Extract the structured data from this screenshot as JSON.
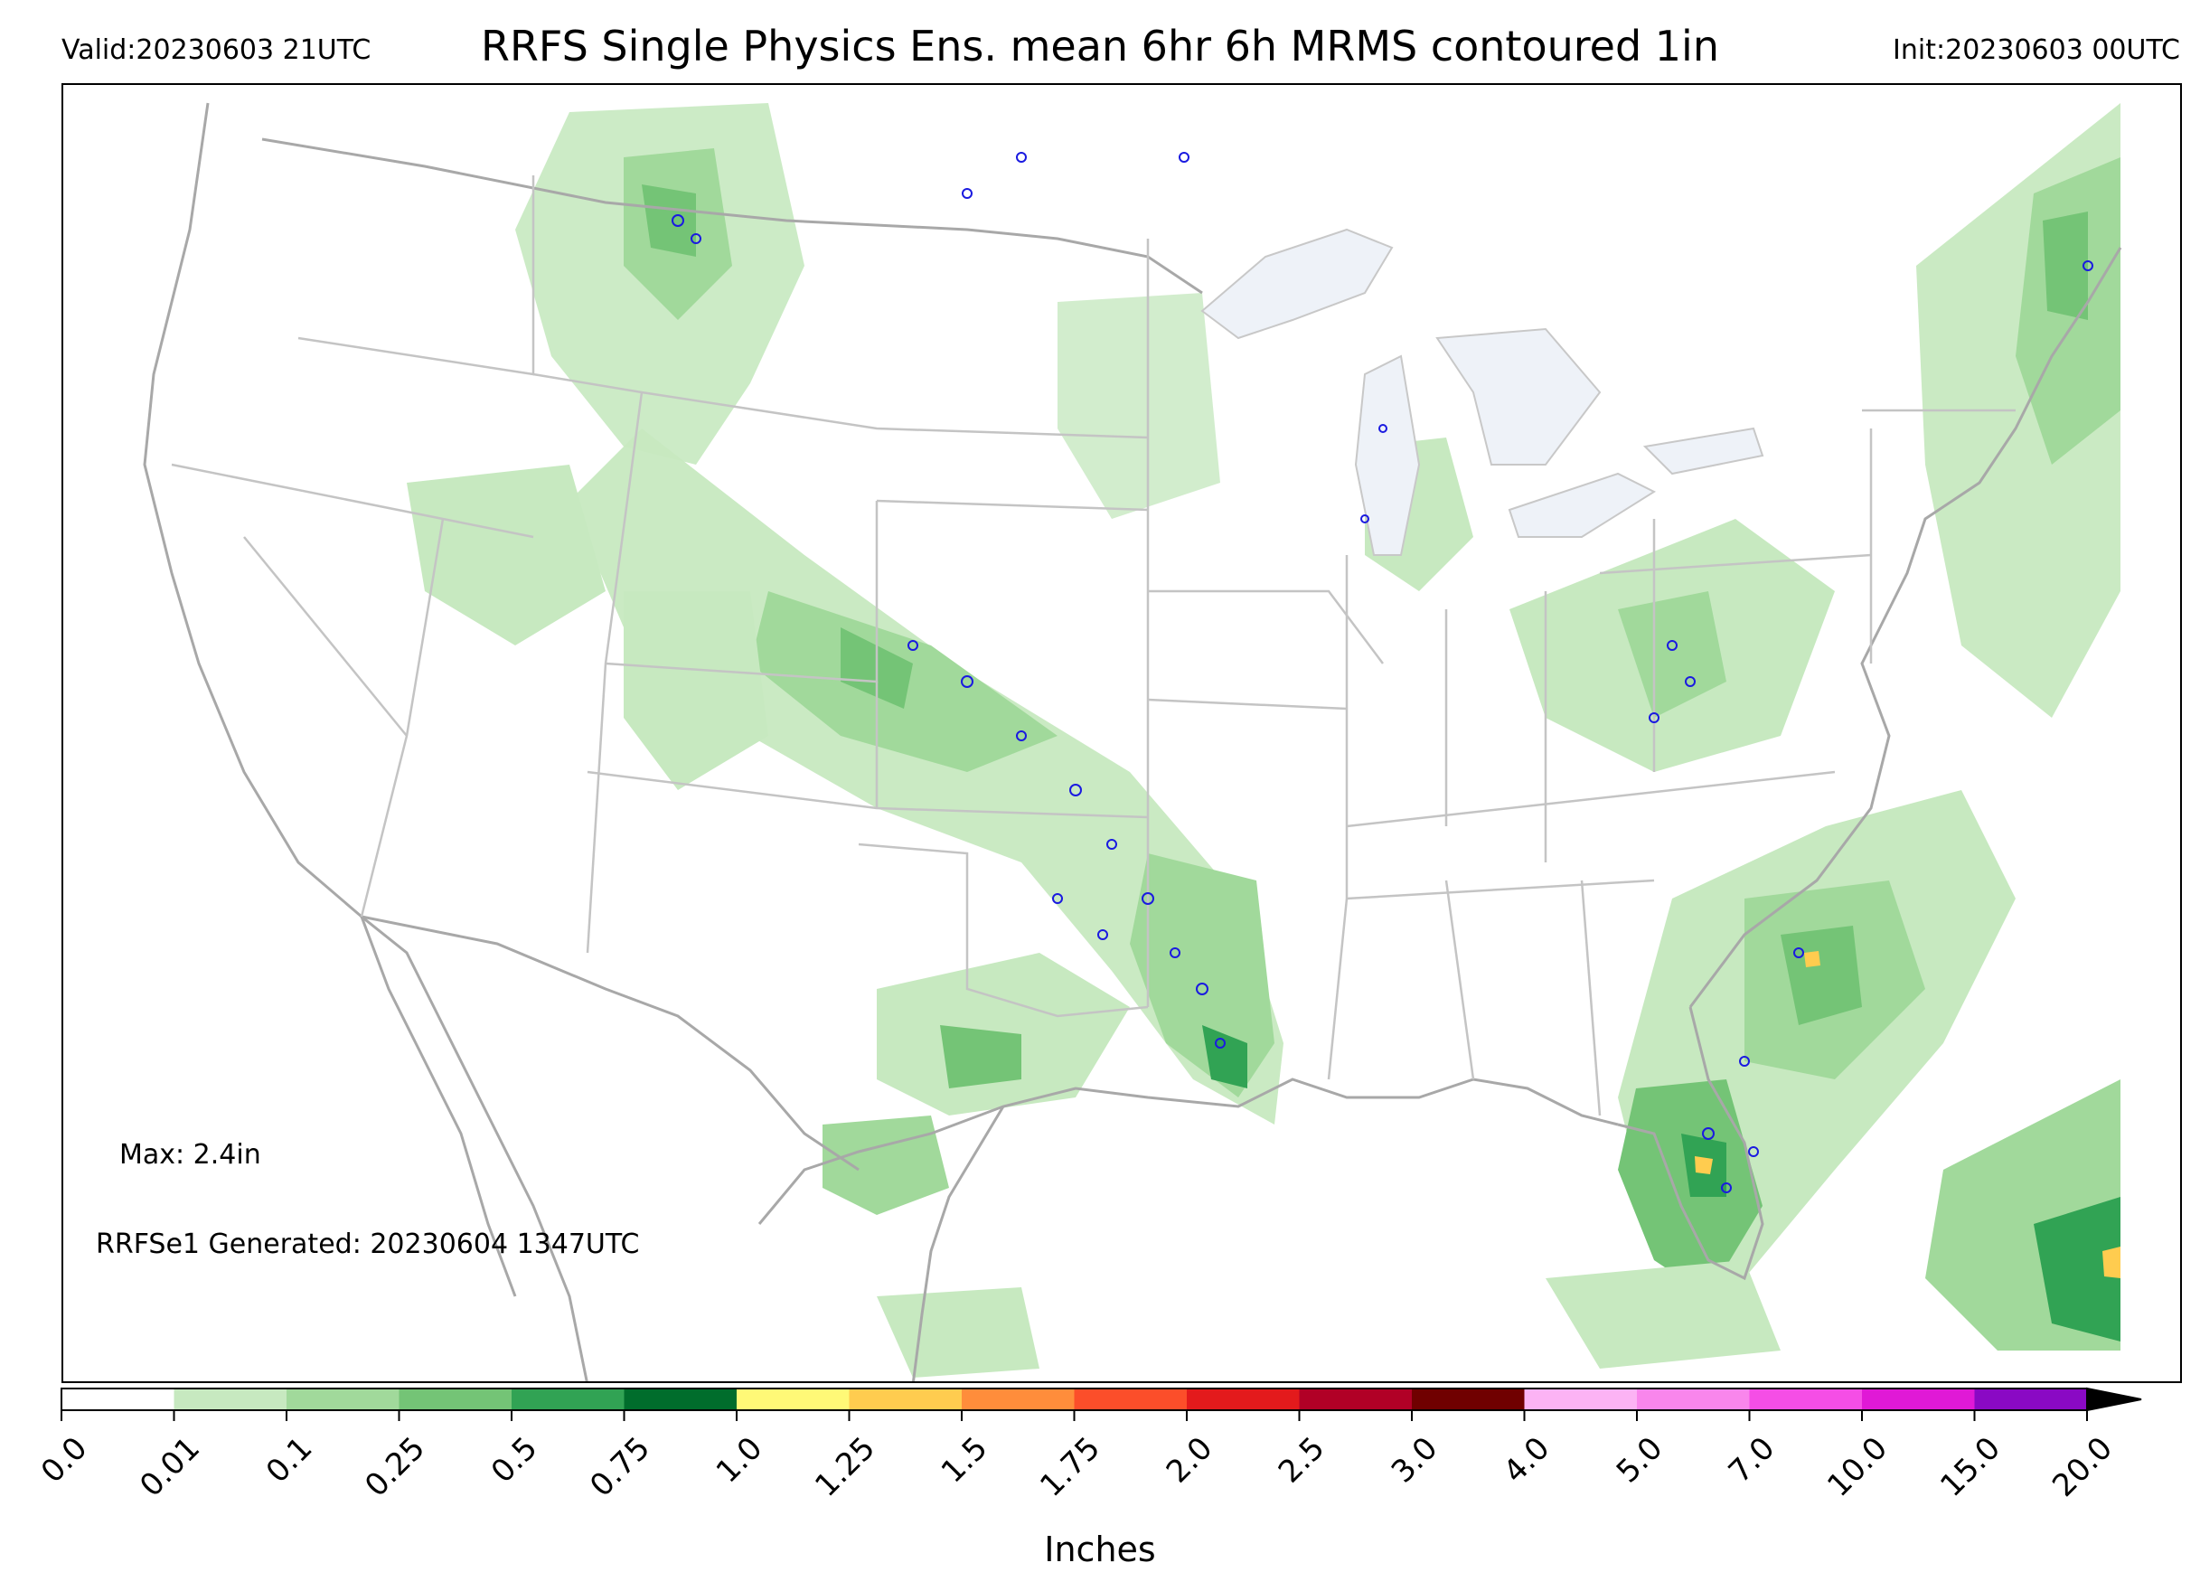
{
  "header": {
    "valid": "Valid:20230603 21UTC",
    "title": "RRFS Single Physics Ens. mean 6hr 6h MRMS contoured 1in",
    "init": "Init:20230603 00UTC"
  },
  "annotations": {
    "max": "Max: 2.4in",
    "generated": "RRFSe1 Generated: 20230604 1347UTC"
  },
  "colorbar": {
    "label": "Inches",
    "extend": "max",
    "ticks": [
      "0.0",
      "0.01",
      "0.1",
      "0.25",
      "0.5",
      "0.75",
      "1.0",
      "1.25",
      "1.5",
      "1.75",
      "2.0",
      "2.5",
      "3.0",
      "4.0",
      "5.0",
      "7.0",
      "10.0",
      "15.0",
      "20.0"
    ],
    "colors": [
      "#ffffff",
      "#c7e9c0",
      "#a1d99b",
      "#74c476",
      "#31a354",
      "#006d2c",
      "#fff977",
      "#ffcc4f",
      "#ff8d3b",
      "#fc4e2a",
      "#e31a1c",
      "#b10026",
      "#700000",
      "#fcb3f4",
      "#f986ec",
      "#f54ee6",
      "#e019d6",
      "#8a09c4"
    ]
  },
  "map": {
    "colors": {
      "border": "#c4c4c4",
      "coast": "#a8a8a8",
      "lake": "#eef2f8",
      "precip_light": "#c7e9c0",
      "precip_mid": "#a1d99b",
      "precip_heavy": "#74c476",
      "precip_core": "#31a354",
      "mrms_contour": "#1a1ae0"
    }
  }
}
